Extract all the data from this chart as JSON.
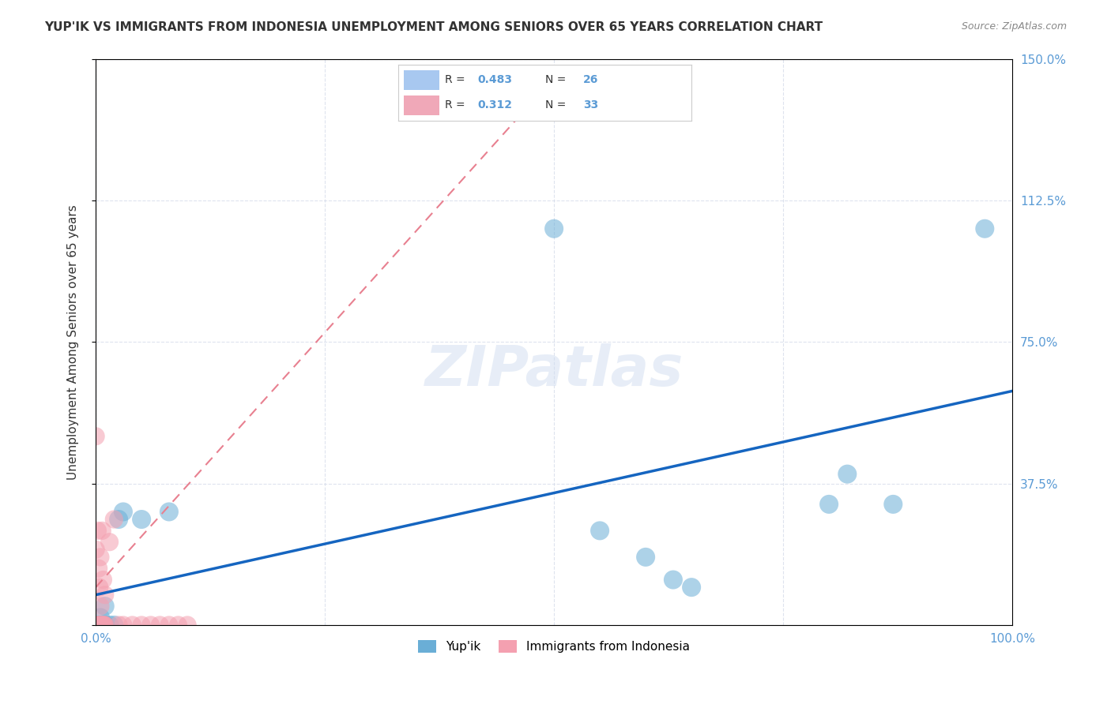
{
  "title": "YUP'IK VS IMMIGRANTS FROM INDONESIA UNEMPLOYMENT AMONG SENIORS OVER 65 YEARS CORRELATION CHART",
  "source": "Source: ZipAtlas.com",
  "xlabel": "",
  "ylabel": "Unemployment Among Seniors over 65 years",
  "xlim": [
    0.0,
    1.0
  ],
  "ylim": [
    0.0,
    1.5
  ],
  "xticks": [
    0.0,
    0.25,
    0.5,
    0.75,
    1.0
  ],
  "xticklabels": [
    "0.0%",
    "",
    "",
    "",
    "100.0%"
  ],
  "yticks": [
    0.0,
    0.375,
    0.75,
    1.125,
    1.5
  ],
  "yticklabels": [
    "",
    "37.5%",
    "75.0%",
    "112.5%",
    "150.0%"
  ],
  "watermark": "ZIPatlas",
  "legend_entries": [
    {
      "label": "R =  0.483   N = 26",
      "color": "#a8c8f0"
    },
    {
      "label": "R =  0.312   N = 33",
      "color": "#f0a8b8"
    }
  ],
  "yupik_points": [
    [
      0.0,
      0.0
    ],
    [
      0.002,
      0.0
    ],
    [
      0.003,
      0.0
    ],
    [
      0.005,
      0.0
    ],
    [
      0.005,
      0.02
    ],
    [
      0.006,
      0.0
    ],
    [
      0.007,
      0.0
    ],
    [
      0.008,
      0.0
    ],
    [
      0.009,
      0.0
    ],
    [
      0.01,
      0.0
    ],
    [
      0.01,
      0.05
    ],
    [
      0.015,
      0.0
    ],
    [
      0.02,
      0.0
    ],
    [
      0.025,
      0.28
    ],
    [
      0.03,
      0.3
    ],
    [
      0.05,
      0.28
    ],
    [
      0.08,
      0.3
    ],
    [
      0.5,
      1.05
    ],
    [
      0.55,
      0.25
    ],
    [
      0.6,
      0.18
    ],
    [
      0.63,
      0.12
    ],
    [
      0.65,
      0.1
    ],
    [
      0.8,
      0.32
    ],
    [
      0.82,
      0.4
    ],
    [
      0.87,
      0.32
    ],
    [
      0.97,
      1.05
    ]
  ],
  "indonesia_points": [
    [
      0.0,
      0.0
    ],
    [
      0.001,
      0.0
    ],
    [
      0.002,
      0.0
    ],
    [
      0.003,
      0.0
    ],
    [
      0.004,
      0.0
    ],
    [
      0.005,
      0.0
    ],
    [
      0.005,
      0.05
    ],
    [
      0.006,
      0.0
    ],
    [
      0.007,
      0.0
    ],
    [
      0.008,
      0.0
    ],
    [
      0.009,
      0.0
    ],
    [
      0.01,
      0.0
    ],
    [
      0.01,
      0.08
    ],
    [
      0.015,
      0.22
    ],
    [
      0.02,
      0.28
    ],
    [
      0.025,
      0.0
    ],
    [
      0.03,
      0.0
    ],
    [
      0.04,
      0.0
    ],
    [
      0.05,
      0.0
    ],
    [
      0.06,
      0.0
    ],
    [
      0.07,
      0.0
    ],
    [
      0.08,
      0.0
    ],
    [
      0.09,
      0.0
    ],
    [
      0.1,
      0.0
    ],
    [
      0.0,
      0.5
    ],
    [
      0.005,
      0.18
    ],
    [
      0.007,
      0.25
    ],
    [
      0.008,
      0.12
    ],
    [
      0.009,
      0.0
    ],
    [
      0.0,
      0.2
    ],
    [
      0.003,
      0.15
    ],
    [
      0.004,
      0.1
    ],
    [
      0.002,
      0.25
    ]
  ],
  "yupik_color": "#6aaed6",
  "indonesia_color": "#f4a0b0",
  "yupik_line_color": "#1565c0",
  "indonesia_line_color": "#e88090",
  "yupik_trendline": [
    0.0,
    0.08,
    1.0,
    0.62
  ],
  "indonesia_trendline": [
    0.0,
    0.1,
    0.5,
    1.45
  ]
}
